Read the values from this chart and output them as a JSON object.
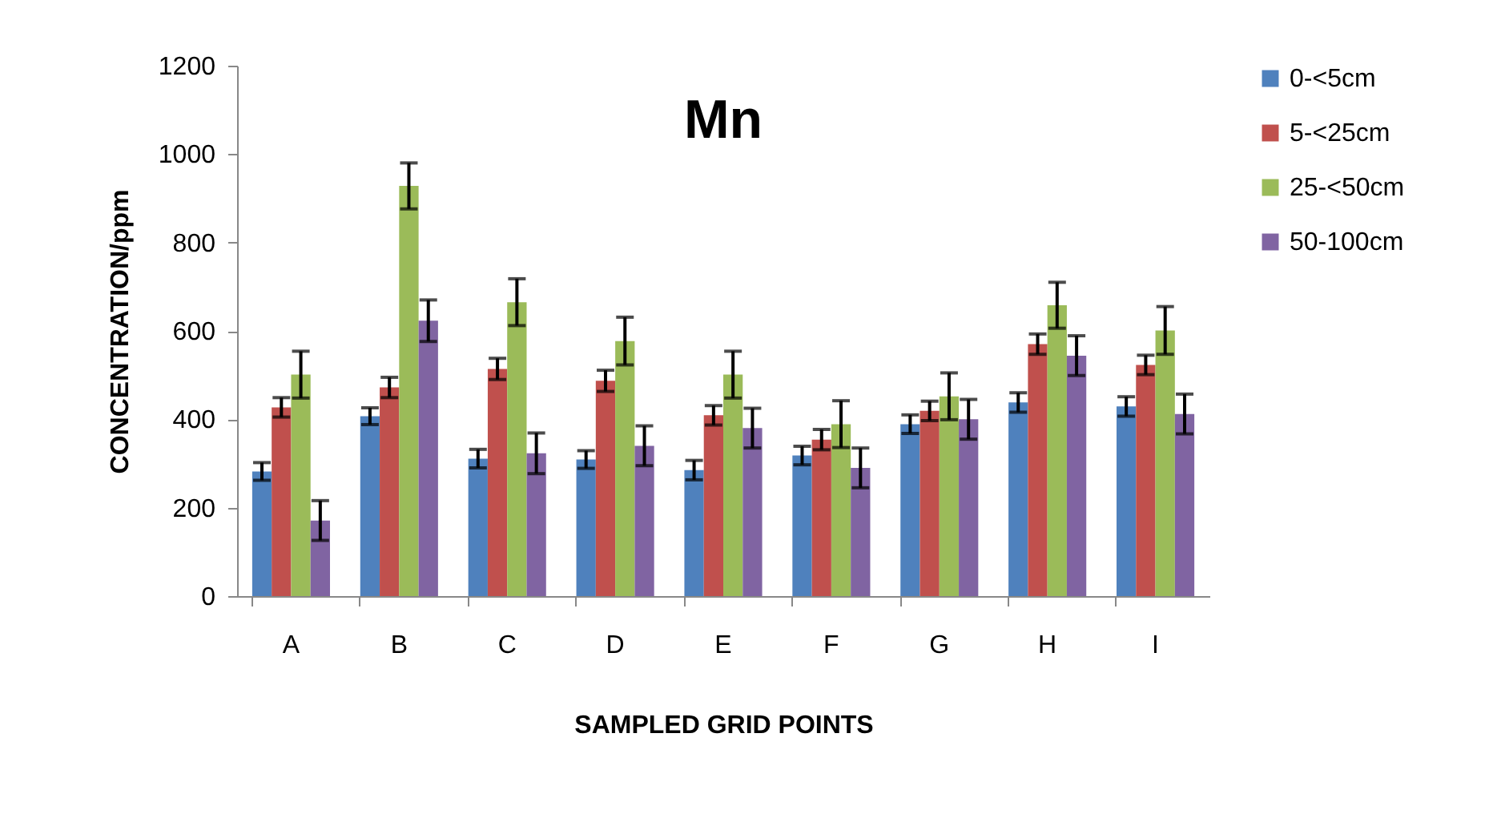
{
  "chart_data": {
    "type": "bar",
    "title": "Mn",
    "xlabel": "SAMPLED GRID POINTS",
    "ylabel": "CONCENTRATION/ppm",
    "categories": [
      "A",
      "B",
      "C",
      "D",
      "E",
      "F",
      "G",
      "H",
      "I"
    ],
    "series": [
      {
        "name": "0-<5cm",
        "color": "#4f81bd",
        "values": [
          282,
          407,
          311,
          309,
          285,
          318,
          389,
          438,
          429
        ],
        "errors": [
          20,
          19,
          21,
          20,
          22,
          21,
          21,
          22,
          22
        ]
      },
      {
        "name": "5-<25cm",
        "color": "#c0504d",
        "values": [
          427,
          472,
          514,
          487,
          409,
          354,
          419,
          570,
          523
        ],
        "errors": [
          22,
          23,
          24,
          24,
          22,
          23,
          22,
          23,
          22
        ]
      },
      {
        "name": "25-<50cm",
        "color": "#9bbb59",
        "values": [
          501,
          928,
          665,
          577,
          501,
          389,
          452,
          658,
          601
        ],
        "errors": [
          53,
          52,
          53,
          54,
          53,
          53,
          53,
          52,
          54
        ]
      },
      {
        "name": "50-100cm",
        "color": "#8064a2",
        "values": [
          171,
          623,
          323,
          340,
          380,
          290,
          400,
          544,
          412
        ],
        "errors": [
          45,
          47,
          46,
          45,
          45,
          45,
          45,
          45,
          45
        ]
      }
    ],
    "ylim": [
      0,
      1200
    ],
    "yticks": [
      0,
      200,
      400,
      600,
      800,
      1000,
      1200
    ],
    "grid": false,
    "legend": "right"
  }
}
